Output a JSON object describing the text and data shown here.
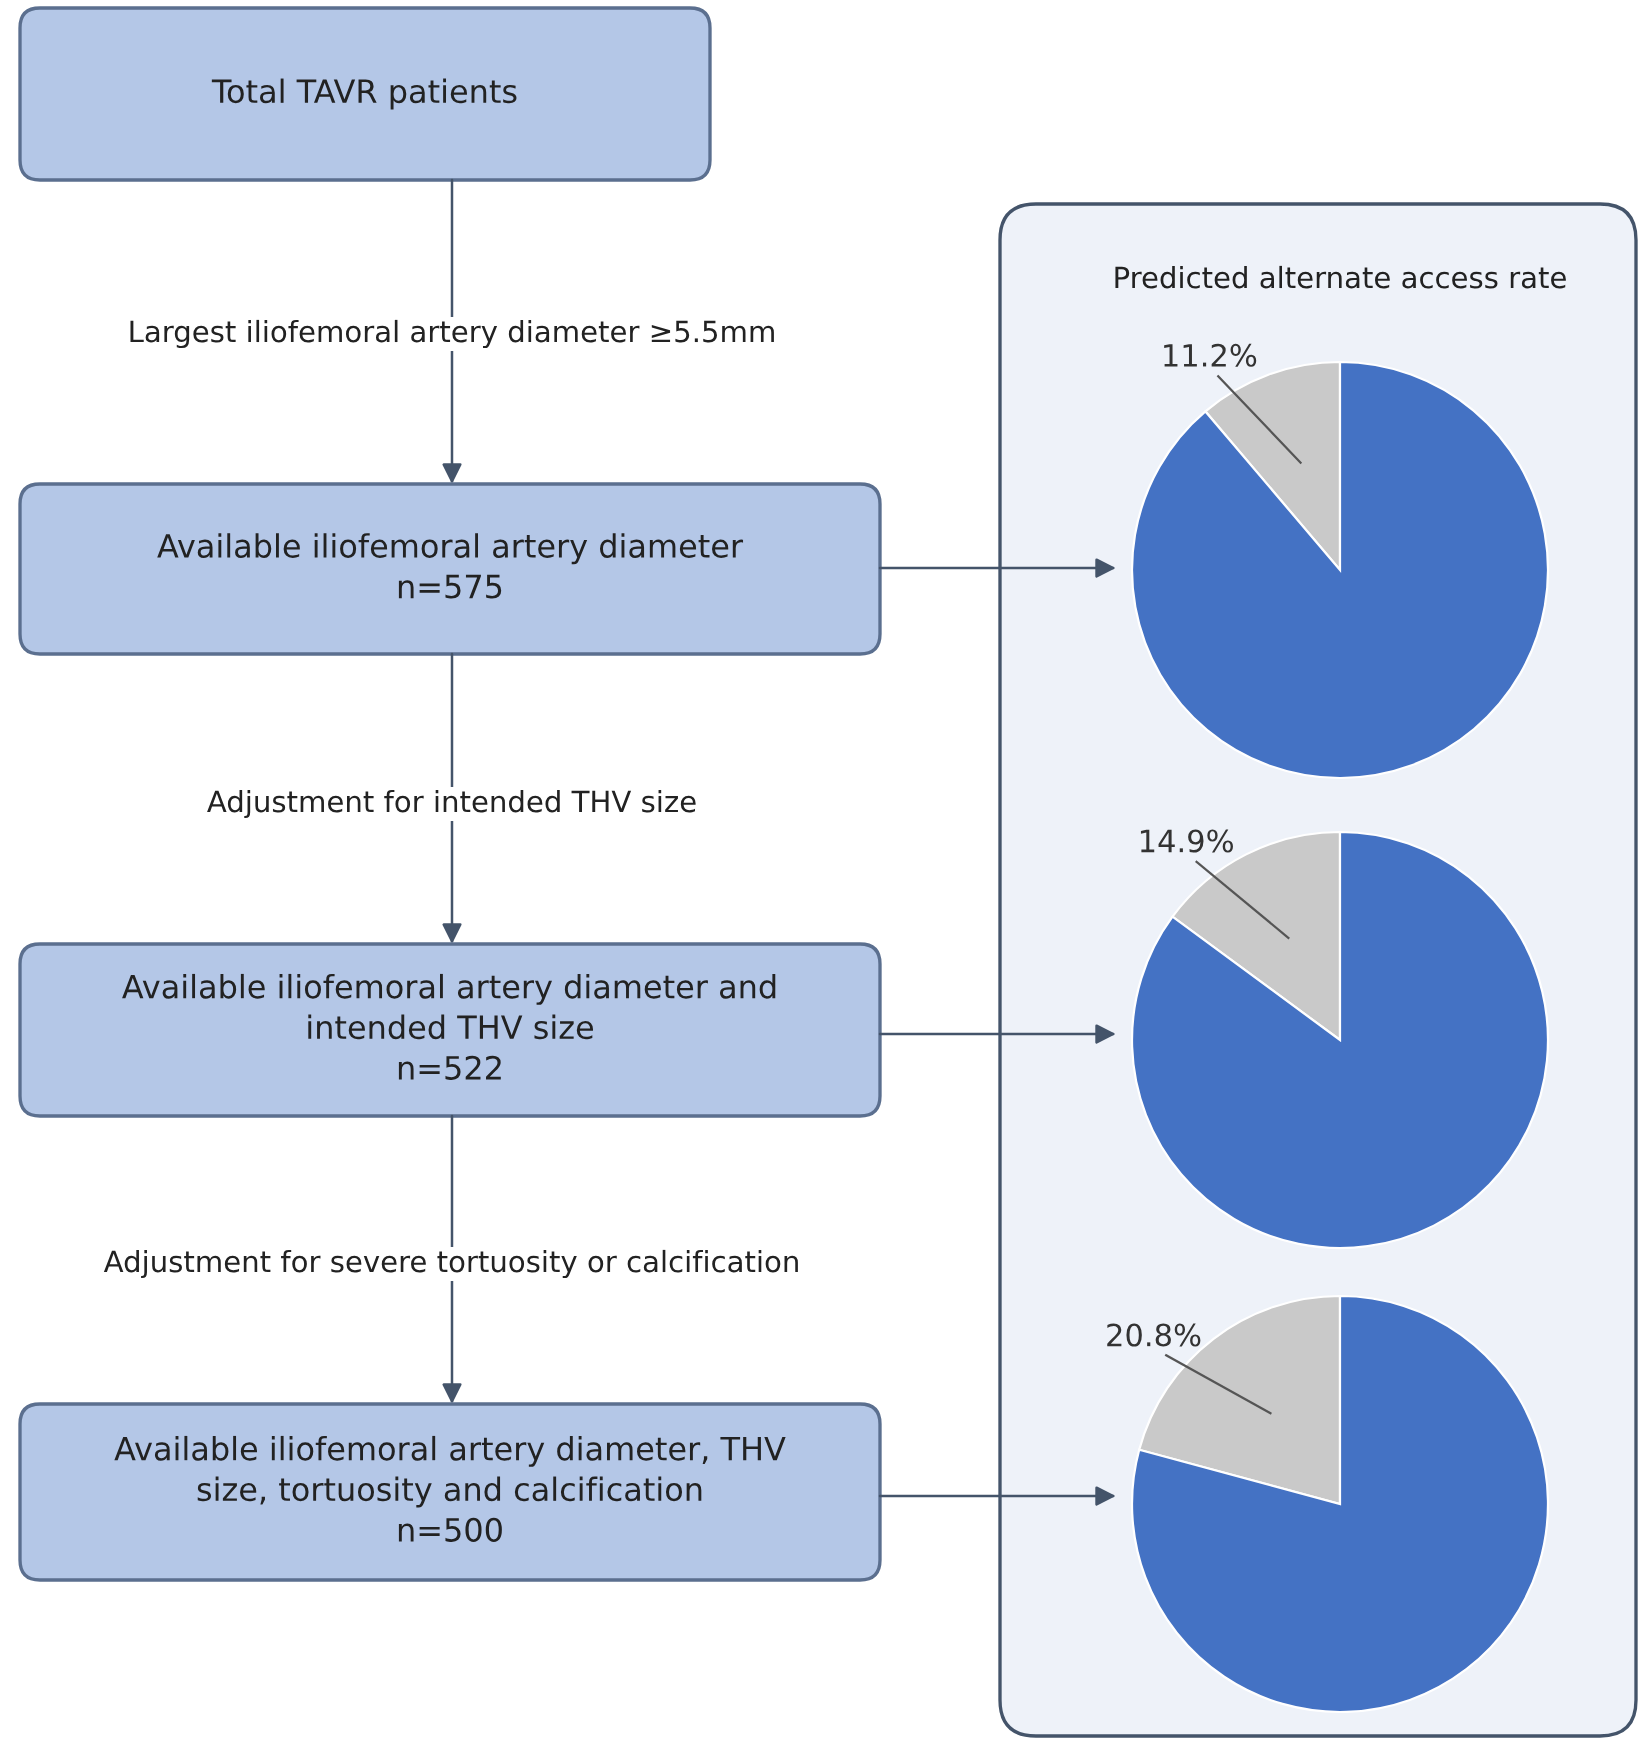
{
  "chart_data": [
    {
      "type": "other",
      "annotations": [
        "Total TAVR patients",
        "Largest iliofemoral artery diameter ≥5.5mm",
        "Available iliofemoral artery diameter\nn=575",
        "Adjustment for intended THV size",
        "Available iliofemoral artery diameter and\nintended THV size\nn=522",
        "Adjustment for severe tortuosity or calcification",
        "Available iliofemoral artery diameter, THV\nsize, tortuosity and calcification\nn=500"
      ]
    },
    {
      "type": "pie",
      "title": "Predicted alternate access rate",
      "categories": [
        null,
        null
      ],
      "values": [
        11.2,
        88.8
      ],
      "colors": [
        "#c9c9c9",
        "#4472c4"
      ],
      "value_labels": [
        "11.2%",
        null
      ]
    },
    {
      "type": "pie",
      "categories": [
        null,
        null
      ],
      "values": [
        14.9,
        85.1
      ],
      "colors": [
        "#c9c9c9",
        "#4472c4"
      ],
      "value_labels": [
        "14.9%",
        null
      ]
    },
    {
      "type": "pie",
      "categories": [
        null,
        null
      ],
      "values": [
        20.8,
        79.2
      ],
      "colors": [
        "#c9c9c9",
        "#4472c4"
      ],
      "value_labels": [
        "20.8%",
        null
      ]
    }
  ]
}
